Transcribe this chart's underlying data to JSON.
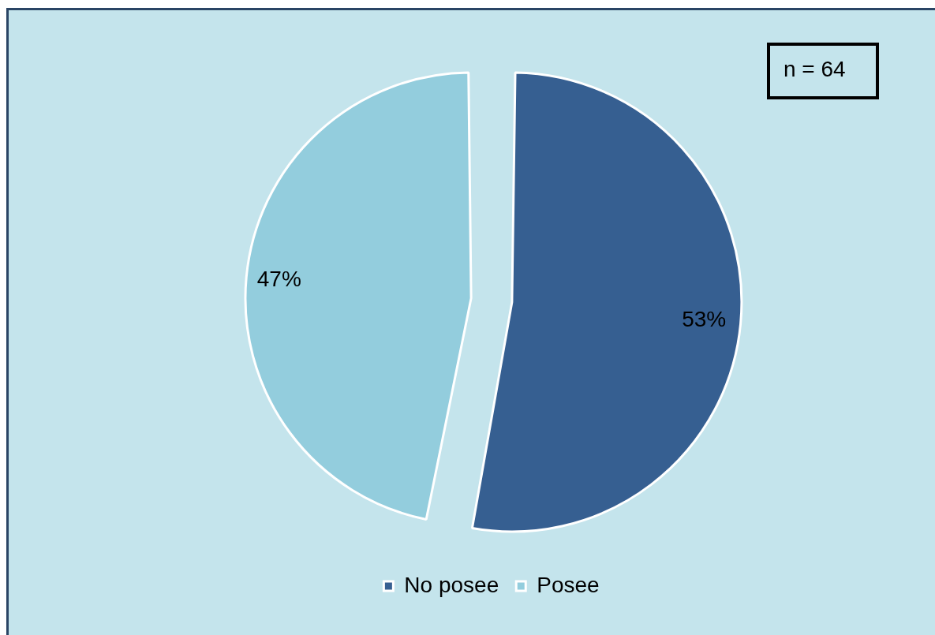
{
  "chart_data": {
    "type": "pie",
    "categories": [
      "No posee",
      "Posee"
    ],
    "values": [
      53,
      47
    ],
    "colors": [
      "#365f91",
      "#93cddd"
    ],
    "value_labels": [
      "53%",
      "47%"
    ],
    "annotations": [
      "n = 64"
    ],
    "legend": "bottom"
  }
}
